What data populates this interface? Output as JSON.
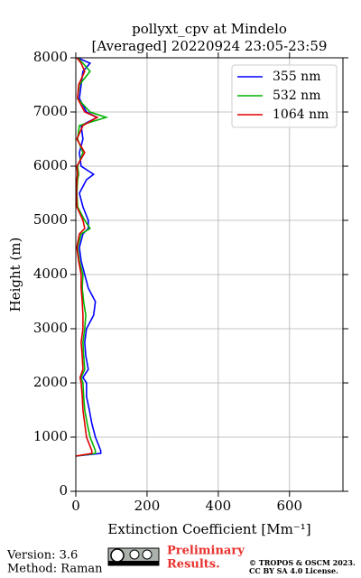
{
  "chart_data": {
    "type": "line",
    "orientation": "profile",
    "title": [
      "pollyxt_cpv at Mindelo",
      "[Averaged] 20220924 23:05-23:59"
    ],
    "x_label": "Extinction Coefficient [Mm⁻¹]",
    "y_label": "Height (m)",
    "xlim": [
      0,
      750
    ],
    "xticks": [
      0,
      200,
      400,
      600
    ],
    "ylim": [
      0,
      8000
    ],
    "yticks": [
      0,
      1000,
      2000,
      3000,
      4000,
      5000,
      6000,
      7000,
      8000
    ],
    "grid": true,
    "legend": "upper right",
    "y": [
      650,
      700,
      750,
      1000,
      1250,
      1500,
      1750,
      2000,
      2100,
      2250,
      2500,
      2750,
      3000,
      3250,
      3500,
      3750,
      4000,
      4250,
      4500,
      4750,
      4850,
      5000,
      5250,
      5500,
      5750,
      5850,
      6000,
      6250,
      6500,
      6750,
      6900,
      7000,
      7250,
      7500,
      7750,
      7900,
      8000
    ],
    "series": [
      {
        "name": "355 nm",
        "color": "#0000ff",
        "values": [
          0,
          70,
          70,
          55,
          45,
          38,
          30,
          30,
          20,
          35,
          28,
          25,
          30,
          50,
          55,
          35,
          25,
          15,
          10,
          20,
          35,
          35,
          20,
          10,
          30,
          50,
          15,
          10,
          20,
          15,
          60,
          30,
          10,
          15,
          20,
          40,
          5
        ]
      },
      {
        "name": "532 nm",
        "color": "#00b400",
        "values": [
          0,
          55,
          55,
          40,
          32,
          25,
          22,
          20,
          15,
          25,
          22,
          20,
          25,
          28,
          22,
          18,
          20,
          10,
          5,
          15,
          40,
          25,
          5,
          3,
          5,
          8,
          5,
          20,
          5,
          10,
          85,
          40,
          5,
          10,
          40,
          20,
          5
        ]
      },
      {
        "name": "1064 nm",
        "color": "#e00000",
        "values": [
          0,
          45,
          45,
          30,
          25,
          20,
          18,
          15,
          12,
          20,
          18,
          15,
          20,
          20,
          18,
          15,
          15,
          8,
          3,
          10,
          25,
          20,
          3,
          2,
          3,
          5,
          3,
          25,
          3,
          20,
          60,
          25,
          5,
          8,
          25,
          15,
          3
        ]
      }
    ]
  },
  "footer": {
    "version": "Version: 3.6",
    "method": "Method: Raman",
    "preliminary": [
      "Preliminary",
      "Results."
    ],
    "copyright": [
      "© TROPOS & OSCM 2023.",
      "CC BY SA 4.0 License."
    ]
  }
}
